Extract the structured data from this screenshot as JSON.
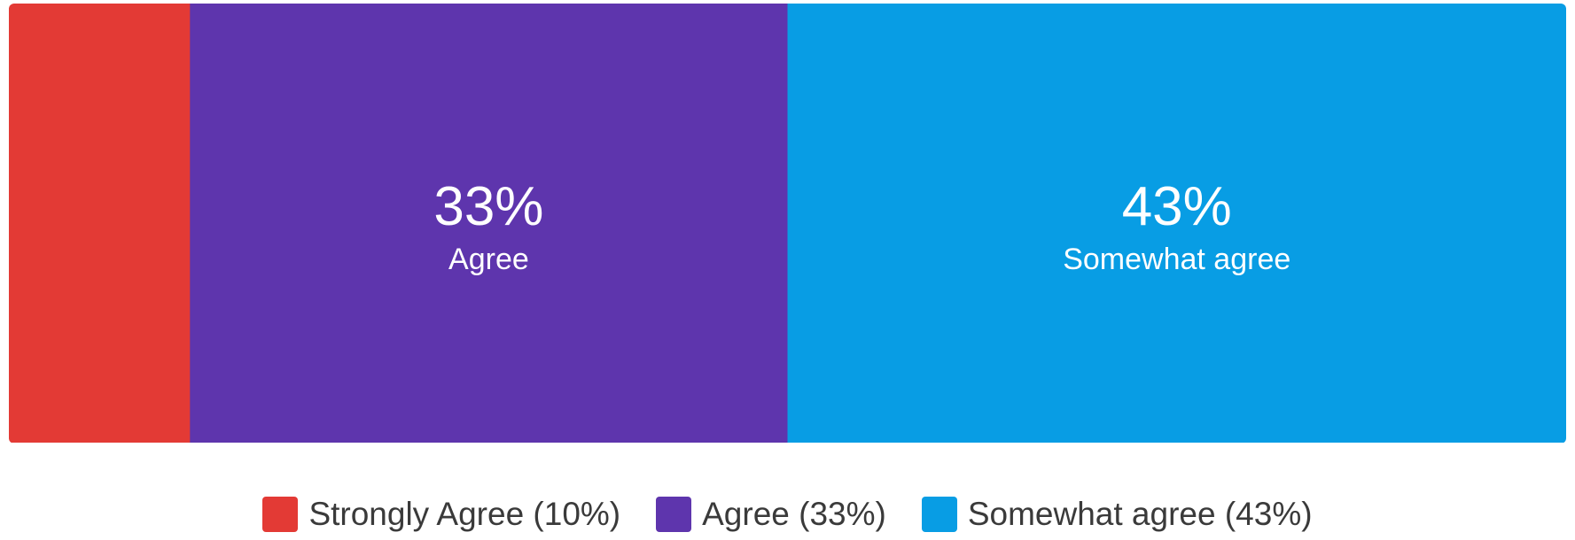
{
  "chart_data": {
    "type": "bar",
    "orientation": "horizontal-stacked",
    "categories": [
      "Strongly Agree",
      "Agree",
      "Somewhat agree"
    ],
    "values": [
      10,
      33,
      43
    ],
    "unit": "%",
    "colors": [
      "#e33a35",
      "#5e35ad",
      "#089de4"
    ],
    "segment_labels": [
      {
        "value": "",
        "name": ""
      },
      {
        "value": "33%",
        "name": "Agree"
      },
      {
        "value": "43%",
        "name": "Somewhat agree"
      }
    ],
    "legend": [
      {
        "label": "Strongly Agree (10%)",
        "color": "#e33a35"
      },
      {
        "label": "Agree (33%)",
        "color": "#5e35ad"
      },
      {
        "label": "Somewhat agree (43%)",
        "color": "#089de4"
      }
    ],
    "legend_position": "bottom-center",
    "grid": false
  }
}
